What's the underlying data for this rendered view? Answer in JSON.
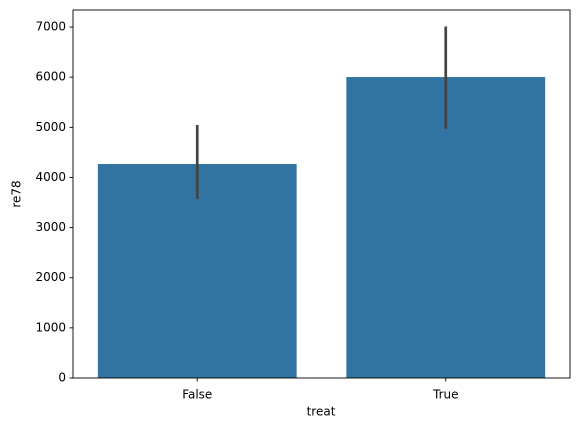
{
  "chart_data": {
    "type": "bar",
    "x_label": "treat",
    "y_label": "re78",
    "categories": [
      "False",
      "True"
    ],
    "values": [
      4268,
      6003
    ],
    "ci": [
      [
        3570,
        5046
      ],
      [
        4970,
        7010
      ]
    ],
    "color": "#3274a1",
    "error_color": "#444444",
    "ylim": [
      0,
      7340
    ],
    "yticks": [
      0,
      1000,
      2000,
      3000,
      4000,
      5000,
      6000,
      7000
    ],
    "grid": false
  }
}
